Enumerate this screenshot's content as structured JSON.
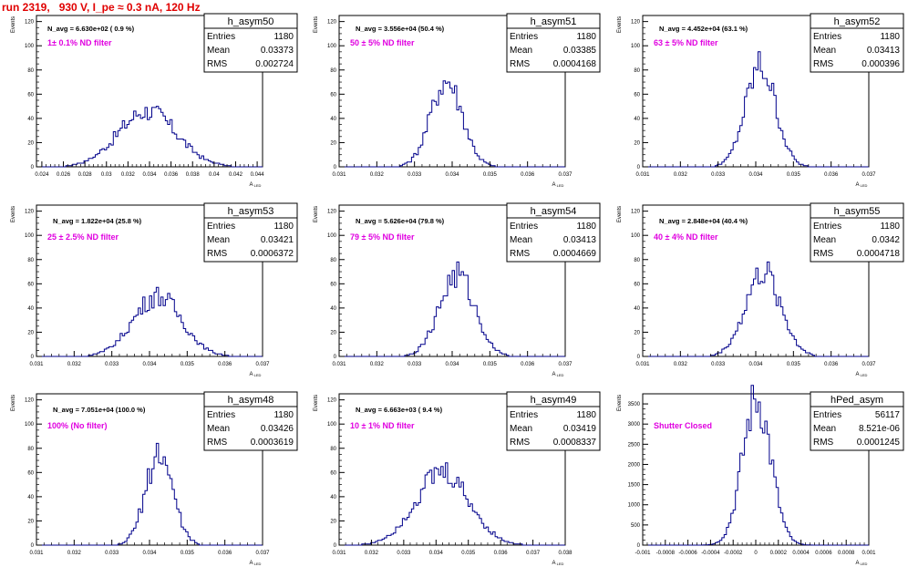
{
  "page_title": "run 2319,   930 V, I_pe ≈ 0.3 nA, 120 Hz",
  "colors": {
    "title": "#e00000",
    "histogram_line": "#00008b",
    "filter_label": "#e000e0",
    "axis": "#000000"
  },
  "chart_data": [
    {
      "type": "bar",
      "name": "h_asym50",
      "xlabel": "A_LED",
      "ylabel": "Events",
      "xlim": [
        0.0235,
        0.0445
      ],
      "ylim": [
        0,
        125
      ],
      "xticks": [
        0.024,
        0.026,
        0.028,
        0.03,
        0.032,
        0.034,
        0.036,
        0.038,
        0.04,
        0.042,
        0.044
      ],
      "xtick_labels": [
        "0.024",
        "0.026",
        "0.028",
        "0.03",
        "0.032",
        "0.034",
        "0.036",
        "0.038",
        "0.04",
        "0.042",
        "0.044"
      ],
      "yticks": [
        0,
        20,
        40,
        60,
        80,
        100,
        120
      ],
      "stats": {
        "Entries": "1180",
        "Mean": "0.03373",
        "RMS": "0.002724"
      },
      "n_avg_text": "N_avg = 6.630e+02 ( 0.9 %)",
      "filter_text": "1± 0.1% ND filter",
      "peak": {
        "center": 0.0338,
        "sigma": 0.0027,
        "max": 46
      }
    },
    {
      "type": "bar",
      "name": "h_asym51",
      "xlabel": "A_LED",
      "ylabel": "Events",
      "xlim": [
        0.031,
        0.037
      ],
      "ylim": [
        0,
        125
      ],
      "xticks": [
        0.031,
        0.032,
        0.033,
        0.034,
        0.035,
        0.036,
        0.037
      ],
      "xtick_labels": [
        "0.031",
        "0.032",
        "0.033",
        "0.034",
        "0.035",
        "0.036",
        "0.037"
      ],
      "yticks": [
        0,
        20,
        40,
        60,
        80,
        100,
        120
      ],
      "stats": {
        "Entries": "1180",
        "Mean": "0.03385",
        "RMS": "0.0004168"
      },
      "n_avg_text": "N_avg = 3.556e+04 (50.4 %)",
      "filter_text": "50 ± 5% ND filter",
      "peak": {
        "center": 0.03385,
        "sigma": 0.00042,
        "max": 71
      }
    },
    {
      "type": "bar",
      "name": "h_asym52",
      "xlabel": "A_LED",
      "ylabel": "Events",
      "xlim": [
        0.031,
        0.037
      ],
      "ylim": [
        0,
        125
      ],
      "xticks": [
        0.031,
        0.032,
        0.033,
        0.034,
        0.035,
        0.036,
        0.037
      ],
      "xtick_labels": [
        "0.031",
        "0.032",
        "0.033",
        "0.034",
        "0.035",
        "0.036",
        "0.037"
      ],
      "yticks": [
        0,
        20,
        40,
        60,
        80,
        100,
        120
      ],
      "stats": {
        "Entries": "1180",
        "Mean": "0.03413",
        "RMS": "0.000396"
      },
      "n_avg_text": "N_avg = 4.452e+04 (63.1 %)",
      "filter_text": "63 ± 5% ND filter",
      "peak": {
        "center": 0.03413,
        "sigma": 0.0004,
        "max": 83
      }
    },
    {
      "type": "bar",
      "name": "h_asym53",
      "xlabel": "A_LED",
      "ylabel": "Events",
      "xlim": [
        0.031,
        0.037
      ],
      "ylim": [
        0,
        125
      ],
      "xticks": [
        0.031,
        0.032,
        0.033,
        0.034,
        0.035,
        0.036,
        0.037
      ],
      "xtick_labels": [
        "0.031",
        "0.032",
        "0.033",
        "0.034",
        "0.035",
        "0.036",
        "0.037"
      ],
      "yticks": [
        0,
        20,
        40,
        60,
        80,
        100,
        120
      ],
      "stats": {
        "Entries": "1180",
        "Mean": "0.03421",
        "RMS": "0.0006372"
      },
      "n_avg_text": "N_avg = 1.822e+04 (25.8 %)",
      "filter_text": "25 ± 2.5% ND filter",
      "peak": {
        "center": 0.03421,
        "sigma": 0.00064,
        "max": 50
      }
    },
    {
      "type": "bar",
      "name": "h_asym54",
      "xlabel": "A_LED",
      "ylabel": "Events",
      "xlim": [
        0.031,
        0.037
      ],
      "ylim": [
        0,
        125
      ],
      "xticks": [
        0.031,
        0.032,
        0.033,
        0.034,
        0.035,
        0.036,
        0.037
      ],
      "xtick_labels": [
        "0.031",
        "0.032",
        "0.033",
        "0.034",
        "0.035",
        "0.036",
        "0.037"
      ],
      "yticks": [
        0,
        20,
        40,
        60,
        80,
        100,
        120
      ],
      "stats": {
        "Entries": "1180",
        "Mean": "0.03413",
        "RMS": "0.0004669"
      },
      "n_avg_text": "N_avg = 5.626e+04 (79.8 %)",
      "filter_text": "79 ± 5% ND filter",
      "peak": {
        "center": 0.03413,
        "sigma": 0.00047,
        "max": 67
      }
    },
    {
      "type": "bar",
      "name": "h_asym55",
      "xlabel": "A_LED",
      "ylabel": "Events",
      "xlim": [
        0.031,
        0.037
      ],
      "ylim": [
        0,
        125
      ],
      "xticks": [
        0.031,
        0.032,
        0.033,
        0.034,
        0.035,
        0.036,
        0.037
      ],
      "xtick_labels": [
        "0.031",
        "0.032",
        "0.033",
        "0.034",
        "0.035",
        "0.036",
        "0.037"
      ],
      "yticks": [
        0,
        20,
        40,
        60,
        80,
        100,
        120
      ],
      "stats": {
        "Entries": "1180",
        "Mean": "0.0342",
        "RMS": "0.0004718"
      },
      "n_avg_text": "N_avg = 2.848e+04 (40.4 %)",
      "filter_text": "40 ± 4% ND filter",
      "peak": {
        "center": 0.0342,
        "sigma": 0.00047,
        "max": 69
      }
    },
    {
      "type": "bar",
      "name": "h_asym48",
      "xlabel": "A_LED",
      "ylabel": "Events",
      "xlim": [
        0.031,
        0.037
      ],
      "ylim": [
        0,
        125
      ],
      "xticks": [
        0.031,
        0.032,
        0.033,
        0.034,
        0.035,
        0.036,
        0.037
      ],
      "xtick_labels": [
        "0.031",
        "0.032",
        "0.033",
        "0.034",
        "0.035",
        "0.036",
        "0.037"
      ],
      "yticks": [
        0,
        20,
        40,
        60,
        80,
        100,
        120
      ],
      "stats": {
        "Entries": "1180",
        "Mean": "0.03426",
        "RMS": "0.0003619"
      },
      "n_avg_text": "N_avg = 7.051e+04 (100.0 %)",
      "filter_text": "100% (No filter)",
      "peak": {
        "center": 0.03426,
        "sigma": 0.00036,
        "max": 76
      }
    },
    {
      "type": "bar",
      "name": "h_asym49",
      "xlabel": "A_LED",
      "ylabel": "Events",
      "xlim": [
        0.031,
        0.038
      ],
      "ylim": [
        0,
        125
      ],
      "xticks": [
        0.031,
        0.032,
        0.033,
        0.034,
        0.035,
        0.036,
        0.037,
        0.038
      ],
      "xtick_labels": [
        "0.031",
        "0.032",
        "0.033",
        "0.034",
        "0.035",
        "0.036",
        "0.037",
        "0.038"
      ],
      "yticks": [
        0,
        20,
        40,
        60,
        80,
        100,
        120
      ],
      "stats": {
        "Entries": "1180",
        "Mean": "0.03419",
        "RMS": "0.0008337"
      },
      "n_avg_text": "N_avg = 6.663e+03 ( 9.4 %)",
      "filter_text": "10 ± 1% ND filter",
      "peak": {
        "center": 0.03419,
        "sigma": 0.00083,
        "max": 60
      }
    },
    {
      "type": "bar",
      "name": "hPed_asym",
      "xlabel": "A_LED",
      "ylabel": "Events",
      "xlim": [
        -0.001,
        0.001
      ],
      "ylim": [
        0,
        3750
      ],
      "xticks": [
        -0.001,
        -0.0008,
        -0.0006,
        -0.0004,
        -0.0002,
        0,
        0.0002,
        0.0004,
        0.0006,
        0.0008,
        0.001
      ],
      "xtick_labels": [
        "-0.001",
        "-0.0008",
        "-0.0006",
        "-0.0004",
        "-0.0002",
        "0",
        "0.0002",
        "0.0004",
        "0.0006",
        "0.0008",
        "0.001"
      ],
      "yticks": [
        0,
        500,
        1000,
        1500,
        2000,
        2500,
        3000,
        3500
      ],
      "stats": {
        "Entries": "56117",
        "Mean": "8.521e-06",
        "RMS": "0.0001245"
      },
      "n_avg_text": "",
      "filter_text": "Shutter Closed",
      "peak": {
        "center": 8.5e-06,
        "sigma": 0.000125,
        "max": 3600
      }
    }
  ]
}
